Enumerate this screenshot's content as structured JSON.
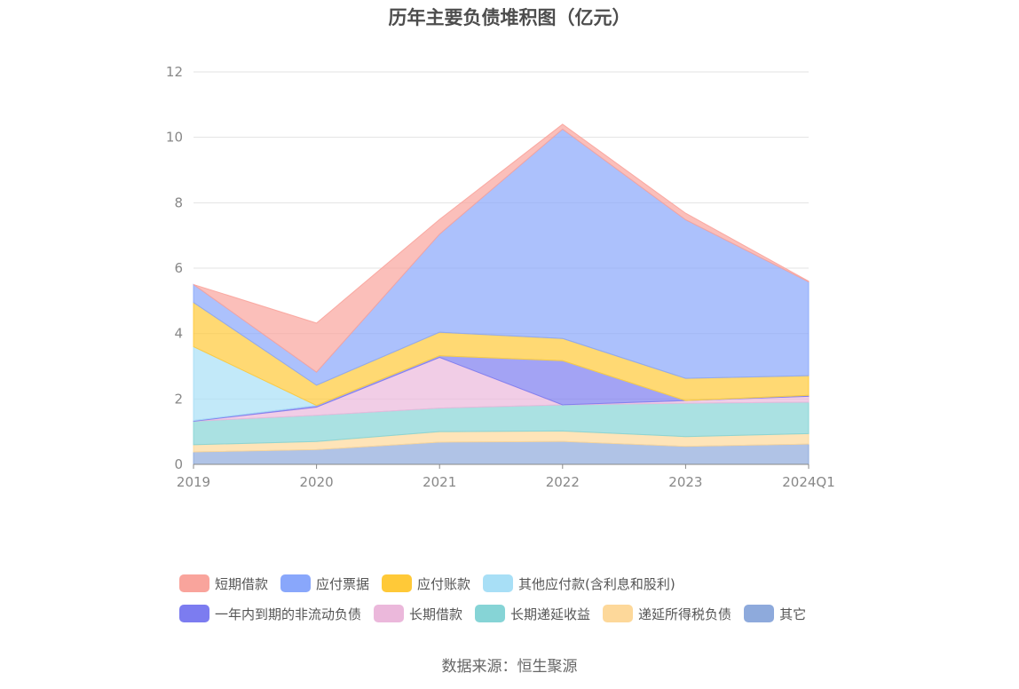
{
  "chart_data": {
    "type": "area",
    "title": "历年主要负债堆积图（亿元）",
    "categories": [
      "2019",
      "2020",
      "2021",
      "2022",
      "2023",
      "2024Q1"
    ],
    "ylim": [
      0,
      12
    ],
    "yticks": [
      0,
      2,
      4,
      6,
      8,
      10,
      12
    ],
    "grid": true,
    "legend_position": "bottom",
    "stacked": true,
    "series": [
      {
        "name": "其它",
        "color": "#8eaadc",
        "values": [
          0.38,
          0.45,
          0.68,
          0.7,
          0.55,
          0.62
        ]
      },
      {
        "name": "递延所得税负债",
        "color": "#fdd89a",
        "values": [
          0.22,
          0.25,
          0.32,
          0.32,
          0.3,
          0.32
        ]
      },
      {
        "name": "长期递延收益",
        "color": "#86d4d6",
        "values": [
          0.72,
          0.8,
          0.72,
          0.8,
          1.02,
          0.96
        ]
      },
      {
        "name": "长期借款",
        "color": "#ebb8db",
        "values": [
          0.0,
          0.25,
          1.55,
          0.0,
          0.08,
          0.18
        ]
      },
      {
        "name": "一年内到期的非流动负债",
        "color": "#7c7cf0",
        "values": [
          0.02,
          0.05,
          0.05,
          1.35,
          0.0,
          0.03
        ]
      },
      {
        "name": "其他应付款(含利息和股利)",
        "color": "#a8dff6",
        "values": [
          2.26,
          0.0,
          0.0,
          0.0,
          0.0,
          0.0
        ]
      },
      {
        "name": "应付账款",
        "color": "#ffc938",
        "values": [
          1.35,
          0.62,
          0.72,
          0.68,
          0.68,
          0.6
        ]
      },
      {
        "name": "应付票据",
        "color": "#89a7fb",
        "values": [
          0.55,
          0.4,
          3.0,
          6.4,
          4.85,
          2.87
        ]
      },
      {
        "name": "短期借款",
        "color": "#f9a49c",
        "values": [
          0.0,
          1.5,
          0.45,
          0.15,
          0.2,
          0.02
        ]
      }
    ]
  },
  "legend": {
    "row1": [
      {
        "label": "短期借款",
        "color": "#f9a49c"
      },
      {
        "label": "应付票据",
        "color": "#89a7fb"
      },
      {
        "label": "应付账款",
        "color": "#ffc938"
      },
      {
        "label": "其他应付款(含利息和股利)",
        "color": "#a8dff6"
      }
    ],
    "row2": [
      {
        "label": "一年内到期的非流动负债",
        "color": "#7c7cf0"
      },
      {
        "label": "长期借款",
        "color": "#ebb8db"
      },
      {
        "label": "长期递延收益",
        "color": "#86d4d6"
      },
      {
        "label": "递延所得税负债",
        "color": "#fdd89a"
      },
      {
        "label": "其它",
        "color": "#8eaadc"
      }
    ]
  },
  "source": "数据来源：恒生聚源"
}
